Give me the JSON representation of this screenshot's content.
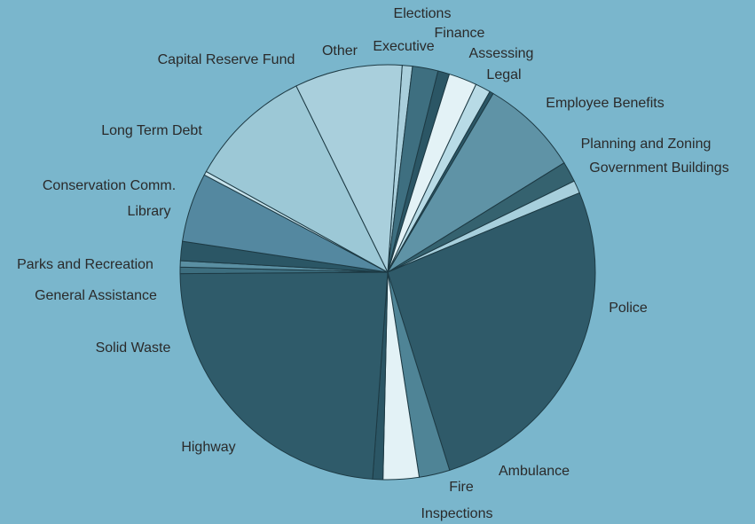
{
  "chart_data": {
    "type": "pie",
    "title": "",
    "background": "#7ab6cc",
    "start_angle_deg": 86,
    "direction": "clockwise",
    "slices": [
      {
        "label": "Other",
        "value": 0.8,
        "color": "#a9cfdc"
      },
      {
        "label": "Executive",
        "value": 2.0,
        "color": "#3e6f80"
      },
      {
        "label": "Elections",
        "value": 0.9,
        "color": "#2b5665"
      },
      {
        "label": "Finance",
        "value": 2.2,
        "color": "#e3f2f6"
      },
      {
        "label": "Assessing",
        "value": 1.2,
        "color": "#b8dbe6"
      },
      {
        "label": "Legal",
        "value": 0.3,
        "color": "#2b5665"
      },
      {
        "label": "Employee Benefits",
        "value": 7.7,
        "color": "#5f93a6"
      },
      {
        "label": "Planning and Zoning",
        "value": 1.6,
        "color": "#35626f"
      },
      {
        "label": "Government Buildings",
        "value": 1.0,
        "color": "#a7cfdc"
      },
      {
        "label": "Police",
        "value": 26.5,
        "color": "#2f5a69"
      },
      {
        "label": "Ambulance",
        "value": 2.4,
        "color": "#4f8496"
      },
      {
        "label": "Fire",
        "value": 2.8,
        "color": "#e3f2f6"
      },
      {
        "label": "Inspections",
        "value": 0.8,
        "color": "#2b5665"
      },
      {
        "label": "Highway",
        "value": 23.8,
        "color": "#2f5b6a"
      },
      {
        "label": "Solid Waste",
        "value": 0.5,
        "color": "#3d6e7f"
      },
      {
        "label": "General Assistance",
        "value": 0.5,
        "color": "#5a8fa2"
      },
      {
        "label": "Parks and Recreation",
        "value": 1.5,
        "color": "#2b5665"
      },
      {
        "label": "Library",
        "value": 5.4,
        "color": "#5488a0"
      },
      {
        "label": "Conservation Comm.",
        "value": 0.3,
        "color": "#c7e3ec"
      },
      {
        "label": "Long Term Debt",
        "value": 9.7,
        "color": "#9cc8d6"
      },
      {
        "label": "Capital Reserve Fund",
        "value": 8.4,
        "color": "#a9cfdc"
      }
    ]
  }
}
